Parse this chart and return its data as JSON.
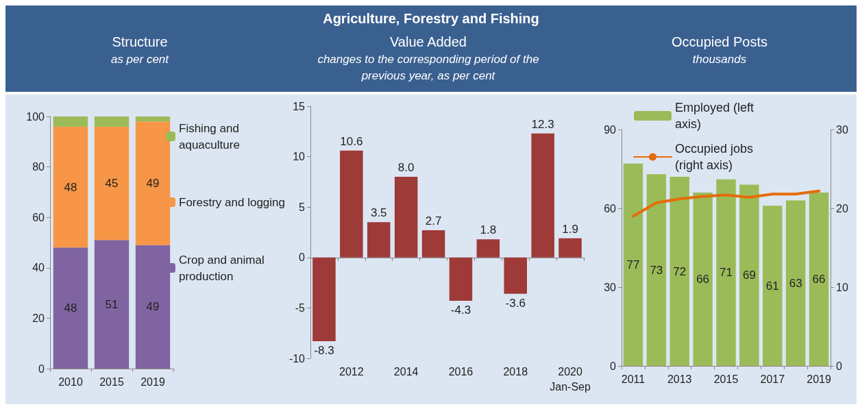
{
  "chart_data": [
    {
      "type": "bar",
      "title": "Structure",
      "subtitle": "as per cent",
      "annotations": [
        "Agriculture, Forestry and Fishing"
      ],
      "categories": [
        "2010",
        "2015",
        "2019"
      ],
      "stacked": true,
      "series": [
        {
          "name": "Crop and animal production",
          "color": "#8064a2",
          "values": [
            48,
            51,
            49
          ],
          "value_labels": [
            "48",
            "51",
            "49"
          ]
        },
        {
          "name": "Forestry and logging",
          "color": "#f79646",
          "values": [
            48,
            45,
            49
          ],
          "value_labels": [
            "48",
            "45",
            "49"
          ]
        },
        {
          "name": "Fishing and aquaculture",
          "color": "#9bbb59",
          "values": [
            4,
            4,
            2
          ]
        }
      ],
      "ylim": [
        0,
        100
      ],
      "yticks": [
        0,
        20,
        40,
        60,
        80,
        100
      ],
      "legend": "right"
    },
    {
      "type": "bar",
      "title": "Value Added",
      "subtitle": "changes to the corresponding period of the previous year, as per cent",
      "categories": [
        null,
        "2012",
        null,
        "2014",
        null,
        "2016",
        null,
        "2018",
        null,
        "2020\nJan-Sep"
      ],
      "values": [
        -8.3,
        10.6,
        3.5,
        8.0,
        2.7,
        -4.3,
        1.8,
        -3.6,
        12.3,
        1.9
      ],
      "color": "#9e3a38",
      "value_labels": [
        "-8.3",
        "10.6",
        "3.5",
        "8.0",
        "2.7",
        "-4.3",
        "1.8",
        "-3.6",
        "12.3",
        "1.9"
      ],
      "ylim": [
        -10,
        15
      ],
      "yticks": [
        -10,
        -5,
        0,
        5,
        10,
        15
      ]
    },
    {
      "type": "bar",
      "title": "Occupied Posts",
      "subtitle": "thousands",
      "categories": [
        "2011",
        null,
        "2013",
        null,
        "2015",
        null,
        "2017",
        null,
        "2019"
      ],
      "series": [
        {
          "name": "Employed (left axis)",
          "type": "bar",
          "color": "#9bbb59",
          "values": [
            77,
            73,
            72,
            66,
            71,
            69,
            61,
            63,
            66
          ],
          "value_labels": [
            "77",
            "73",
            "72",
            "66",
            "71",
            "69",
            "61",
            "63",
            "66"
          ]
        },
        {
          "name": "Occupied jobs (right axis)",
          "type": "line",
          "axis": "y2",
          "color": "#e46c0a",
          "values": [
            19.0,
            20.7,
            21.2,
            21.5,
            21.7,
            21.4,
            21.8,
            21.8,
            22.2
          ]
        }
      ],
      "ylim": [
        0,
        90
      ],
      "yticks": [
        0,
        30,
        60,
        90
      ],
      "y2lim": [
        0,
        30
      ],
      "y2ticks": [
        0,
        10,
        20,
        30
      ],
      "legend": "top",
      "marker": "none"
    }
  ]
}
